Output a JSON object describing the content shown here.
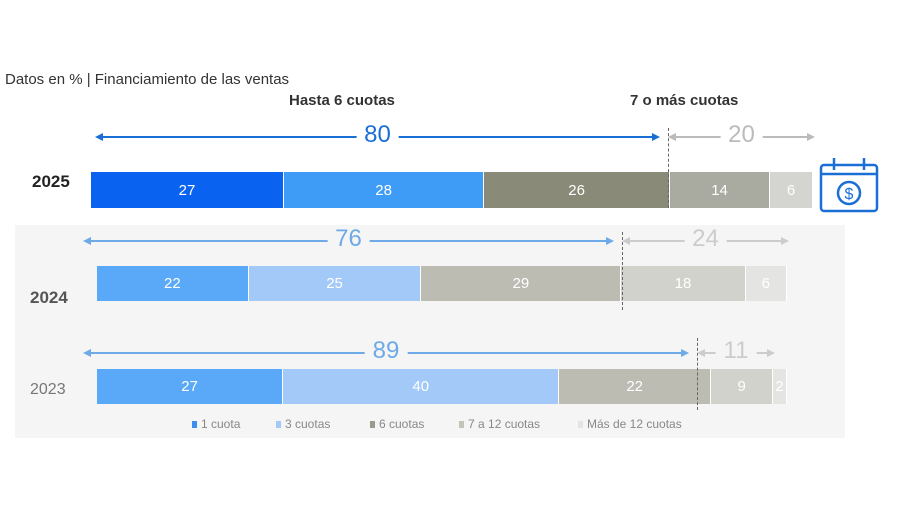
{
  "subtitle": "Datos en % | Financiamiento de las ventas",
  "group_labels": {
    "short": "Hasta 6 cuotas",
    "long": "7 o más cuotas"
  },
  "icon": "calendar-dollar-icon",
  "chart_data": {
    "type": "bar",
    "orientation": "horizontal-stacked",
    "series_names": [
      "1 cuota",
      "3 cuotas",
      "6 cuotas",
      "7 a 12 cuotas",
      "Más de 12 cuotas"
    ],
    "rows": [
      {
        "year": "2025",
        "values": [
          27,
          28,
          26,
          14,
          6
        ],
        "total_short": "80",
        "total_long": "20",
        "colors": [
          "#0a63f0",
          "#3f9cf6",
          "#8a8a78",
          "#aaaba0",
          "#d4d4d0"
        ]
      },
      {
        "year": "2024",
        "values": [
          22,
          25,
          29,
          18,
          6
        ],
        "total_short": "76",
        "total_long": "24",
        "colors": [
          "#5aa8f8",
          "#a2c9f8",
          "#bcbcb2",
          "#d2d2cc",
          "#e4e4e2"
        ]
      },
      {
        "year": "2023",
        "values": [
          27,
          40,
          22,
          9,
          2
        ],
        "total_short": "89",
        "total_long": "11",
        "colors": [
          "#5aa8f8",
          "#a2c9f8",
          "#bcbcb2",
          "#d2d2cc",
          "#e4e4e2"
        ]
      }
    ],
    "legend_colors": [
      "#3d8ef0",
      "#a2c9f8",
      "#9a9a8e",
      "#c4c4bc",
      "#e4e4e2"
    ],
    "legend_position": "bottom"
  }
}
